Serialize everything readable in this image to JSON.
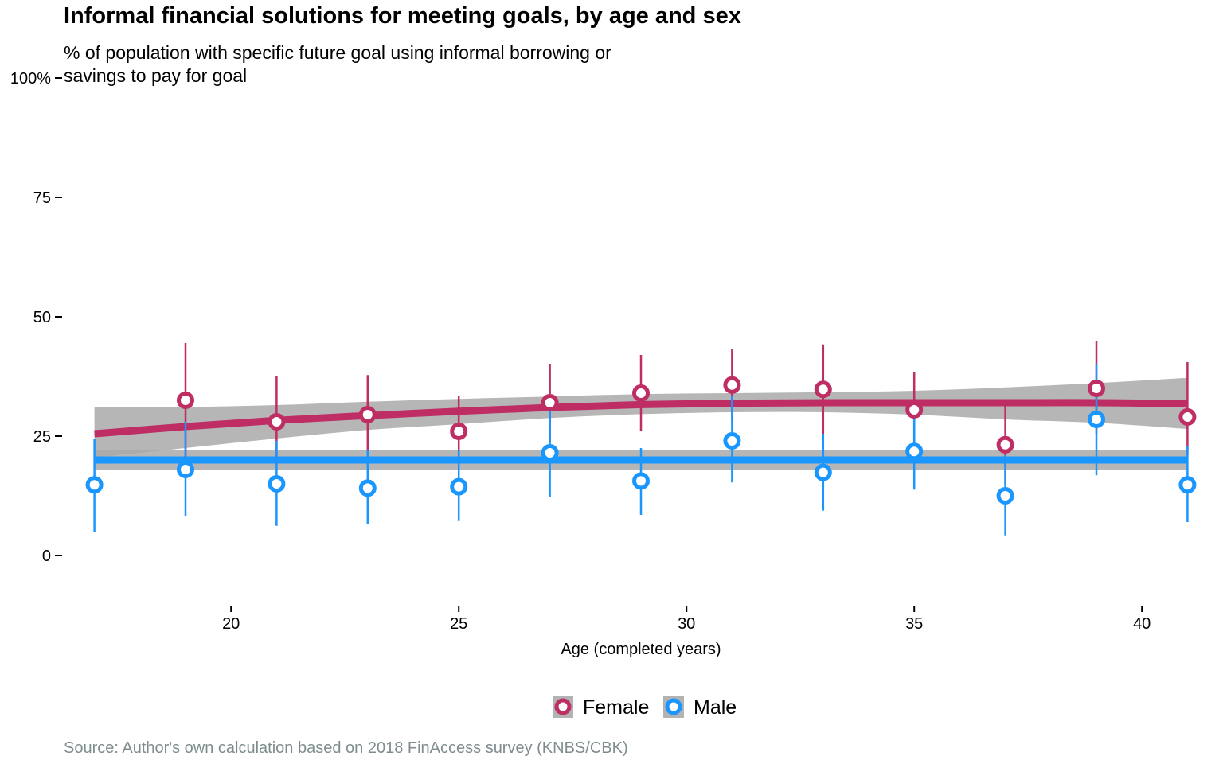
{
  "header": {
    "title": "Informal financial solutions for meeting goals, by age and sex",
    "subtitle": "% of population with specific future goal using informal borrowing or savings to pay for goal"
  },
  "caption": "Source: Author's own calculation based on 2018 FinAccess survey (KNBS/CBK)",
  "chart_data": {
    "type": "scatter",
    "xlabel": "Age (completed years)",
    "ylabel": "",
    "xlim": [
      16.5,
      41.5
    ],
    "ylim": [
      -10,
      100
    ],
    "x_ticks": [
      20,
      25,
      30,
      35,
      40
    ],
    "x_tick_labels": [
      "20",
      "25",
      "30",
      "35",
      "40"
    ],
    "y_ticks": [
      0,
      25,
      50,
      75,
      100
    ],
    "y_tick_labels": [
      "0",
      "25",
      "50",
      "75",
      "100%"
    ],
    "grid": false,
    "legend": {
      "position": "bottom",
      "entries": [
        "Female",
        "Male"
      ]
    },
    "x": [
      17,
      19,
      21,
      23,
      25,
      27,
      29,
      31,
      33,
      35,
      37,
      39,
      41
    ],
    "series": [
      {
        "name": "Female",
        "color": "#be2d64",
        "y": [
          null,
          32.5,
          28,
          29.5,
          26,
          32,
          34,
          35.7,
          34.8,
          30.5,
          23.2,
          35,
          29
        ],
        "lower": [
          null,
          20.5,
          19,
          21,
          19,
          24,
          26,
          28.5,
          25.5,
          22.5,
          15,
          25.5,
          21
        ],
        "upper": [
          null,
          44.5,
          37.5,
          37.8,
          33.5,
          40,
          42,
          43.3,
          44.2,
          38.5,
          32,
          45,
          40.5
        ],
        "trend_x": [
          17,
          19,
          21,
          23,
          25,
          27,
          29,
          31,
          33,
          35,
          37,
          39,
          41
        ],
        "trend_y": [
          25.5,
          27,
          28.3,
          29.3,
          30.2,
          31,
          31.6,
          31.9,
          32,
          32,
          32,
          32,
          31.8
        ],
        "band_lower": [
          20.5,
          22.5,
          24.5,
          26.3,
          27.5,
          28.8,
          29.6,
          30,
          30,
          29.5,
          28.5,
          27.8,
          26.5
        ],
        "band_upper": [
          31,
          31.1,
          31.5,
          32.2,
          32.8,
          33.3,
          33.8,
          34,
          34.2,
          34.5,
          35.2,
          36.1,
          37.2
        ]
      },
      {
        "name": "Male",
        "color": "#1a96ff",
        "y": [
          14.8,
          18,
          15,
          14.1,
          14.4,
          21.5,
          15.6,
          24,
          17.4,
          21.8,
          12.5,
          28.5,
          14.8
        ],
        "lower": [
          5,
          8.3,
          6.2,
          6.5,
          7.2,
          12.3,
          8.5,
          15.3,
          9.4,
          13.8,
          4.2,
          16.8,
          7
        ],
        "upper": [
          24.5,
          28,
          24,
          22,
          22,
          31,
          22.5,
          33.5,
          25.5,
          30,
          21,
          40.2,
          23
        ],
        "trend_x": [
          17,
          41
        ],
        "trend_y": [
          20,
          20
        ],
        "band_lower": [
          18,
          18
        ],
        "band_upper": [
          22,
          22
        ]
      }
    ]
  }
}
